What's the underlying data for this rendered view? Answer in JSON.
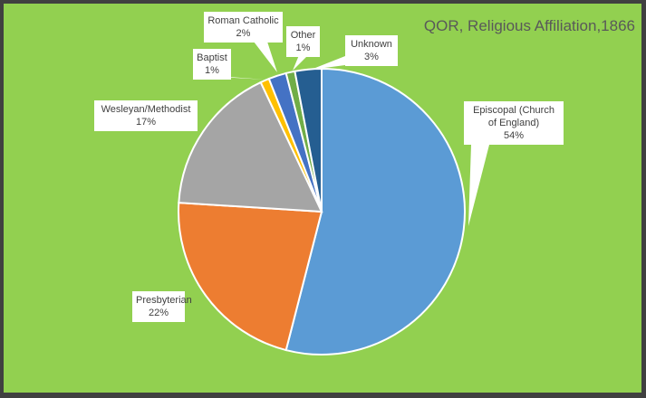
{
  "chart_data": {
    "type": "pie",
    "title": "QOR, Religious Affiliation,1866",
    "categories": [
      "Episcopal (Church of England)",
      "Presbyterian",
      "Wesleyan/Methodist",
      "Baptist",
      "Roman Catholic",
      "Other",
      "Unknown"
    ],
    "values": [
      54,
      22,
      17,
      1,
      2,
      1,
      3
    ],
    "labels": [
      "54%",
      "22%",
      "17%",
      "1%",
      "2%",
      "1%",
      "3%"
    ],
    "colors": [
      "#5b9bd5",
      "#ed7d31",
      "#a5a5a5",
      "#ffc000",
      "#4472c4",
      "#70ad47",
      "#255e91"
    ],
    "background": "#92d050",
    "legend": "none"
  }
}
